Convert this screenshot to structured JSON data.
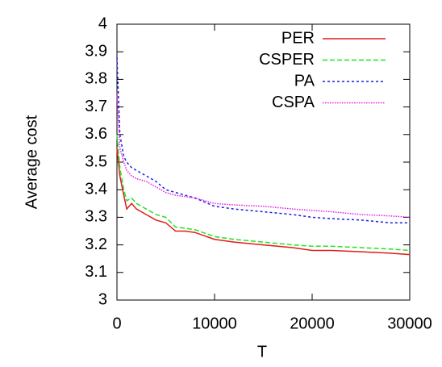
{
  "chart_data": {
    "type": "line",
    "x_label": "T",
    "y_label": "Average cost",
    "x": [
      0,
      300,
      700,
      1000,
      1500,
      2000,
      3000,
      4000,
      5000,
      6000,
      7000,
      8000,
      10000,
      12000,
      15000,
      18000,
      20000,
      22000,
      25000,
      28000,
      30000
    ],
    "series": [
      {
        "name": "PER",
        "color": "#e41a1c",
        "dash": "solid",
        "values": [
          3.55,
          3.45,
          3.38,
          3.33,
          3.35,
          3.33,
          3.31,
          3.29,
          3.28,
          3.25,
          3.25,
          3.245,
          3.22,
          3.21,
          3.2,
          3.19,
          3.18,
          3.18,
          3.175,
          3.17,
          3.165
        ]
      },
      {
        "name": "CSPER",
        "color": "#1ee61e",
        "dash": "dashed",
        "values": [
          3.6,
          3.48,
          3.4,
          3.36,
          3.37,
          3.35,
          3.33,
          3.31,
          3.3,
          3.265,
          3.26,
          3.255,
          3.23,
          3.22,
          3.21,
          3.2,
          3.195,
          3.195,
          3.19,
          3.185,
          3.18
        ]
      },
      {
        "name": "PA",
        "color": "#1a1ae6",
        "dash": "dashed-fine",
        "values": [
          3.88,
          3.6,
          3.52,
          3.5,
          3.48,
          3.47,
          3.45,
          3.43,
          3.4,
          3.39,
          3.38,
          3.37,
          3.34,
          3.33,
          3.32,
          3.31,
          3.3,
          3.295,
          3.29,
          3.28,
          3.28
        ]
      },
      {
        "name": "CSPA",
        "color": "#e61ae6",
        "dash": "dotted",
        "values": [
          3.75,
          3.55,
          3.5,
          3.47,
          3.45,
          3.44,
          3.43,
          3.41,
          3.39,
          3.38,
          3.375,
          3.37,
          3.35,
          3.345,
          3.34,
          3.33,
          3.325,
          3.32,
          3.31,
          3.305,
          3.3
        ]
      }
    ],
    "xlim": [
      0,
      30000
    ],
    "xticks": [
      0,
      10000,
      20000,
      30000
    ],
    "ylim": [
      3,
      4
    ],
    "yticks": [
      3,
      3.1,
      3.2,
      3.3,
      3.4,
      3.5,
      3.6,
      3.7,
      3.8,
      3.9,
      4
    ],
    "grid": false,
    "legend": "top-right"
  }
}
